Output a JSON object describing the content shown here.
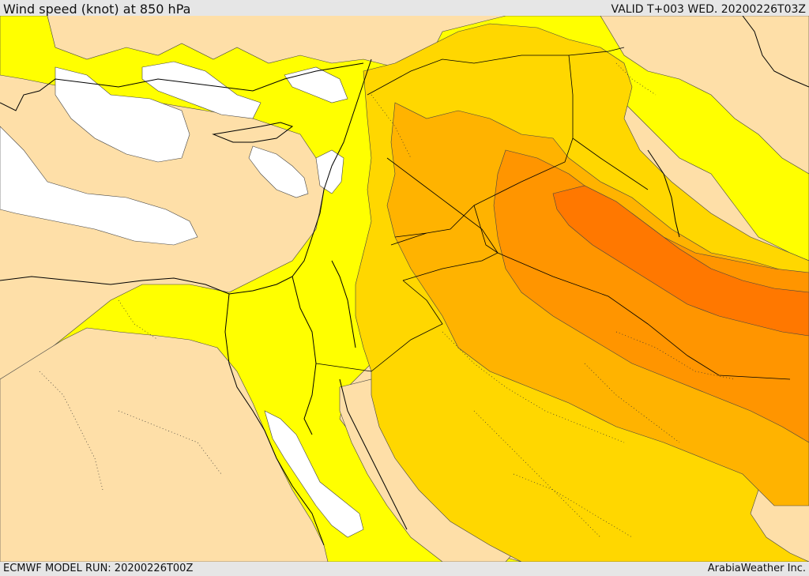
{
  "header": {
    "title": "Wind speed (knot) at 850 hPa",
    "valid": "VALID T+003 WED. 20200226T03Z"
  },
  "footer": {
    "model_run": "ECMWF MODEL RUN: 20200226T00Z",
    "credit": "ArabiaWeather Inc."
  },
  "colors": {
    "calm": "#ffffff",
    "light": "#ffffff",
    "land_tan": "#fedfa8",
    "yellow": "#ffff00",
    "gold": "#ffd700",
    "amber": "#ffb300",
    "orange": "#ff9500",
    "dark_orange": "#ff7800",
    "coast": "#000000"
  }
}
